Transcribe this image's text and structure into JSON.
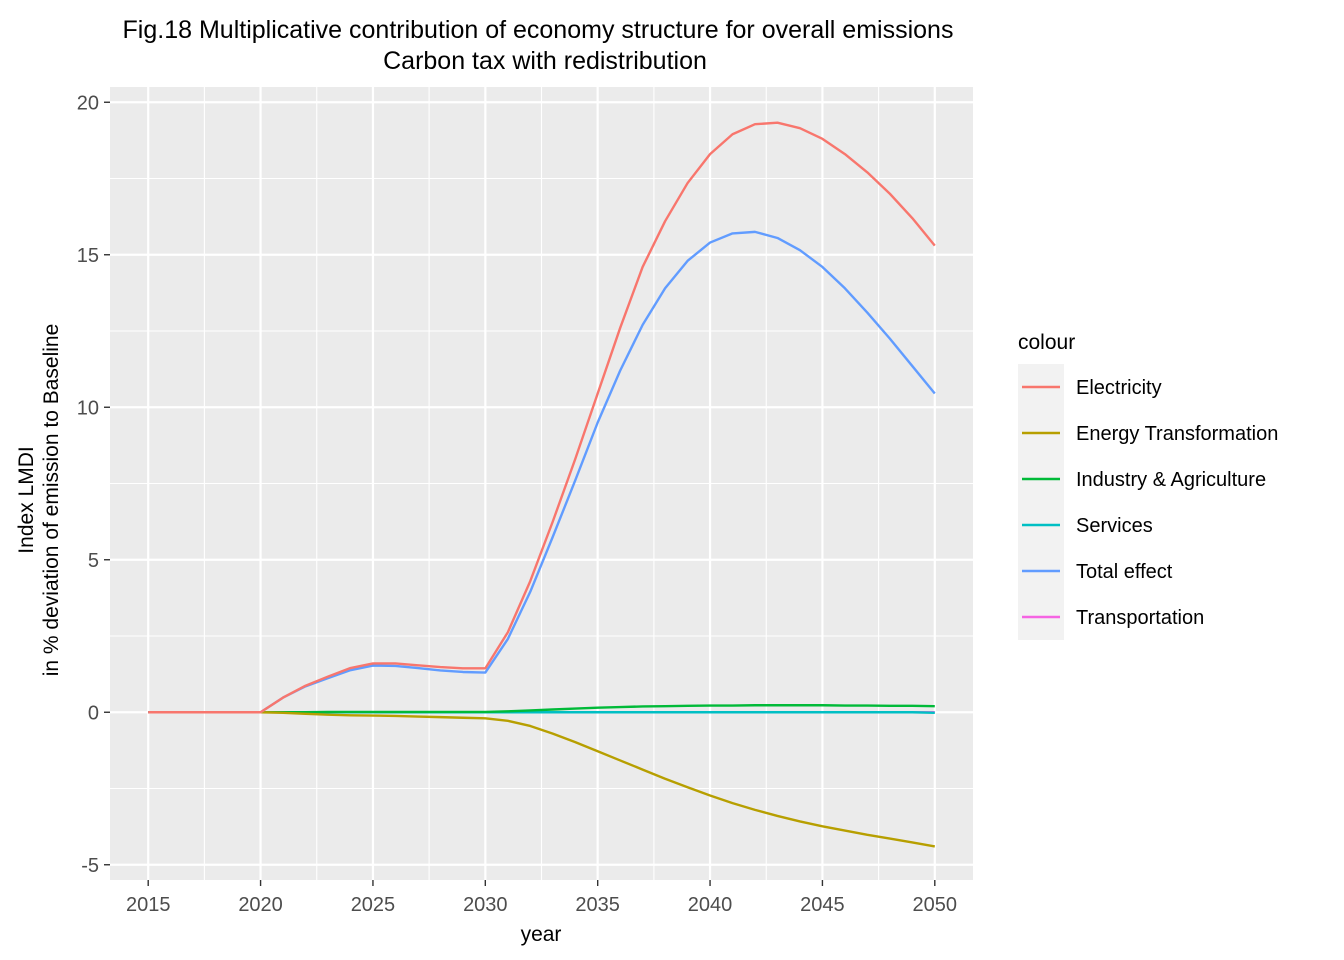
{
  "chart_data": {
    "type": "line",
    "title": "Fig.18 Multiplicative contribution of economy structure for overall emissions",
    "subtitle": "Carbon tax with redistribution",
    "xlabel": "year",
    "ylabel_line1": "Index LMDI",
    "ylabel_line2": "in % deviation of emission to Baseline",
    "xlim": [
      2013.3,
      2051.7
    ],
    "ylim": [
      -5.5,
      20.5
    ],
    "x_ticks": [
      2015,
      2020,
      2025,
      2030,
      2035,
      2040,
      2045,
      2050
    ],
    "y_ticks": [
      -5,
      0,
      5,
      10,
      15,
      20
    ],
    "x_tick_labels": [
      "2015",
      "2020",
      "2025",
      "2030",
      "2035",
      "2040",
      "2045",
      "2050"
    ],
    "y_tick_labels": [
      "-5",
      "0",
      "5",
      "10",
      "15",
      "20"
    ],
    "grid": true,
    "legend_title": "colour",
    "legend_position": "right",
    "x": [
      2015,
      2016,
      2017,
      2018,
      2019,
      2020,
      2021,
      2022,
      2023,
      2024,
      2025,
      2026,
      2027,
      2028,
      2029,
      2030,
      2031,
      2032,
      2033,
      2034,
      2035,
      2036,
      2037,
      2038,
      2039,
      2040,
      2041,
      2042,
      2043,
      2044,
      2045,
      2046,
      2047,
      2048,
      2049,
      2050
    ],
    "series": [
      {
        "name": "Transportation",
        "color": "#F564E3",
        "values": [
          0,
          0,
          0,
          0,
          0,
          0,
          0,
          0,
          0,
          0,
          0,
          0,
          0,
          0,
          0,
          0,
          0,
          0,
          0,
          0,
          0,
          0,
          0,
          0,
          0,
          0,
          0,
          0,
          0,
          0,
          0,
          0,
          0,
          0,
          0,
          0
        ]
      },
      {
        "name": "Services",
        "color": "#00BFC4",
        "values": [
          0,
          0,
          0,
          0,
          0,
          0,
          0,
          0,
          0,
          0,
          0,
          0,
          0,
          0,
          0,
          0,
          0,
          0,
          0,
          0,
          0,
          0,
          0,
          0,
          0,
          0,
          0,
          0,
          0,
          0,
          0,
          0,
          0,
          0,
          0,
          -0.02
        ]
      },
      {
        "name": "Industry & Agriculture",
        "color": "#00BA38",
        "values": [
          0,
          0,
          0,
          0,
          0,
          0,
          0,
          0,
          0.01,
          0.01,
          0.01,
          0.01,
          0.01,
          0.01,
          0.01,
          0.01,
          0.03,
          0.06,
          0.09,
          0.12,
          0.15,
          0.17,
          0.19,
          0.2,
          0.21,
          0.22,
          0.22,
          0.23,
          0.23,
          0.23,
          0.23,
          0.22,
          0.22,
          0.21,
          0.21,
          0.2
        ]
      },
      {
        "name": "Energy Transformation",
        "color": "#B79F00",
        "values": [
          0,
          0,
          0,
          0,
          0,
          0,
          -0.02,
          -0.05,
          -0.08,
          -0.1,
          -0.11,
          -0.12,
          -0.14,
          -0.16,
          -0.18,
          -0.2,
          -0.28,
          -0.45,
          -0.7,
          -0.98,
          -1.28,
          -1.58,
          -1.88,
          -2.18,
          -2.46,
          -2.73,
          -2.98,
          -3.2,
          -3.4,
          -3.58,
          -3.74,
          -3.88,
          -4.02,
          -4.14,
          -4.27,
          -4.4
        ]
      },
      {
        "name": "Total effect",
        "color": "#619CFF",
        "values": [
          0,
          0,
          0,
          0,
          0,
          0,
          0.48,
          0.85,
          1.12,
          1.38,
          1.53,
          1.52,
          1.45,
          1.37,
          1.32,
          1.3,
          2.4,
          3.95,
          5.75,
          7.6,
          9.5,
          11.2,
          12.7,
          13.9,
          14.8,
          15.4,
          15.7,
          15.75,
          15.55,
          15.15,
          14.6,
          13.9,
          13.1,
          12.25,
          11.35,
          10.45
        ]
      },
      {
        "name": "Electricity",
        "color": "#F8766D",
        "values": [
          0,
          0,
          0,
          0,
          0,
          0,
          0.48,
          0.87,
          1.17,
          1.45,
          1.6,
          1.6,
          1.54,
          1.48,
          1.44,
          1.44,
          2.62,
          4.3,
          6.25,
          8.3,
          10.45,
          12.6,
          14.6,
          16.1,
          17.35,
          18.3,
          18.95,
          19.28,
          19.33,
          19.15,
          18.8,
          18.3,
          17.7,
          17.0,
          16.2,
          15.3
        ]
      }
    ],
    "legend_order": [
      "Electricity",
      "Energy Transformation",
      "Industry & Agriculture",
      "Services",
      "Total effect",
      "Transportation"
    ]
  }
}
